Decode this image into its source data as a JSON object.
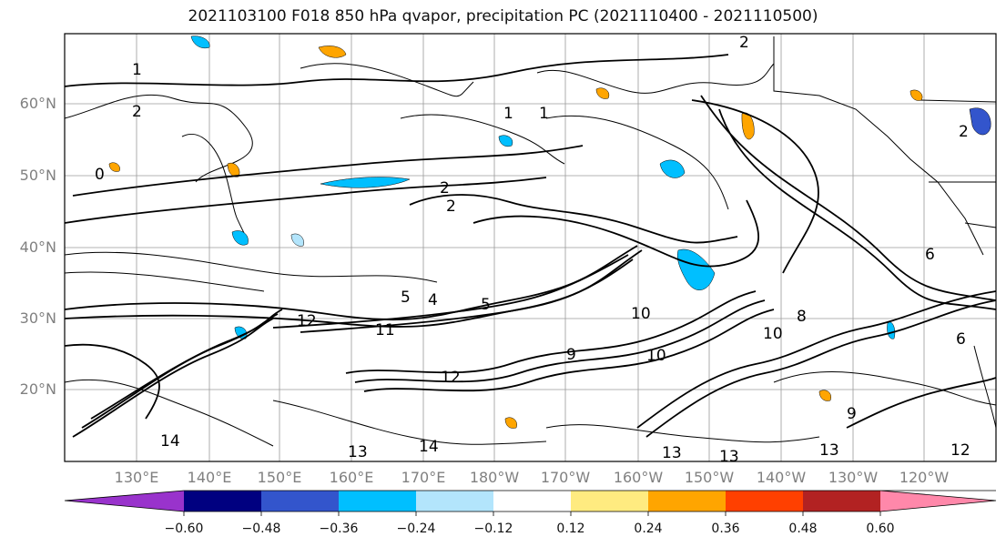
{
  "title": "2021103100 F018 850 hPa qvapor, precipitation PC (2021110400 - 2021110500)",
  "map": {
    "lat_labels": [
      "60°N",
      "50°N",
      "40°N",
      "30°N",
      "20°N"
    ],
    "lon_labels": [
      "130°E",
      "140°E",
      "150°E",
      "160°E",
      "170°E",
      "180°W",
      "170°W",
      "160°W",
      "150°W",
      "140°W",
      "130°W",
      "120°W"
    ],
    "contour_labels": [
      "1",
      "2",
      "2",
      "1",
      "1",
      "0",
      "2",
      "2",
      "5",
      "5",
      "4",
      "12",
      "11",
      "12",
      "10",
      "10",
      "10",
      "8",
      "9",
      "14",
      "13",
      "14",
      "13",
      "13",
      "13",
      "6",
      "9",
      "12",
      "6",
      "2"
    ]
  },
  "colorbar": {
    "colors": [
      "#9933cc",
      "#000080",
      "#3355cc",
      "#00bfff",
      "#b3e5fc",
      "#ffffff",
      "#ffeb80",
      "#ffa500",
      "#ff4000",
      "#b22222",
      "#ff88aa"
    ],
    "tick_labels": [
      "−0.60",
      "−0.48",
      "−0.36",
      "−0.24",
      "−0.12",
      "0.12",
      "0.24",
      "0.36",
      "0.48",
      "0.60"
    ]
  }
}
